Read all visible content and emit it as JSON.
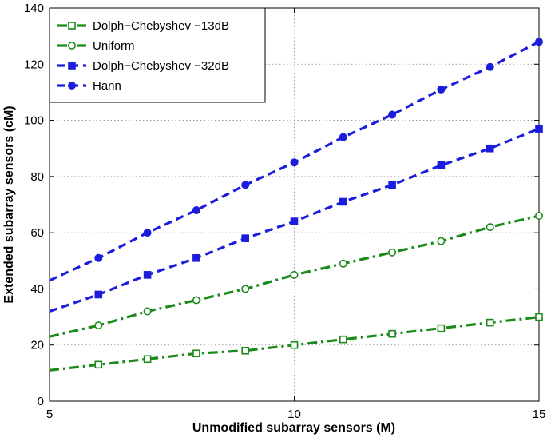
{
  "chart_data": {
    "type": "line",
    "title": "",
    "xlabel": "Unmodified subarray sensors (M)",
    "ylabel": "Extended subarray sensors (cM)",
    "xlim": [
      5,
      15
    ],
    "ylim": [
      0,
      140
    ],
    "xticks": [
      5,
      10,
      15
    ],
    "yticks": [
      0,
      20,
      40,
      60,
      80,
      100,
      120,
      140
    ],
    "grid": true,
    "legend_position": "top-left",
    "x": [
      5,
      6,
      7,
      8,
      9,
      10,
      11,
      12,
      13,
      14,
      15
    ],
    "series": [
      {
        "name": "Dolph−Chebyshev −13dB",
        "color": "#1a8a1a",
        "linestyle": "dash-dot",
        "marker": "square-open",
        "values": [
          11,
          13,
          15,
          17,
          18,
          20,
          22,
          24,
          26,
          28,
          30
        ]
      },
      {
        "name": "Uniform",
        "color": "#1a8a1a",
        "linestyle": "dash-dot",
        "marker": "circle-open",
        "values": [
          23,
          27,
          32,
          36,
          40,
          45,
          49,
          53,
          57,
          62,
          66
        ]
      },
      {
        "name": "Dolph−Chebyshev −32dB",
        "color": "#1c1cdc",
        "linestyle": "dashed",
        "marker": "square-filled",
        "values": [
          32,
          38,
          45,
          51,
          58,
          64,
          71,
          77,
          84,
          90,
          97
        ]
      },
      {
        "name": "Hann",
        "color": "#1c1cdc",
        "linestyle": "dashed",
        "marker": "circle-filled",
        "values": [
          43,
          51,
          60,
          68,
          77,
          85,
          94,
          102,
          111,
          119,
          128
        ]
      }
    ]
  }
}
